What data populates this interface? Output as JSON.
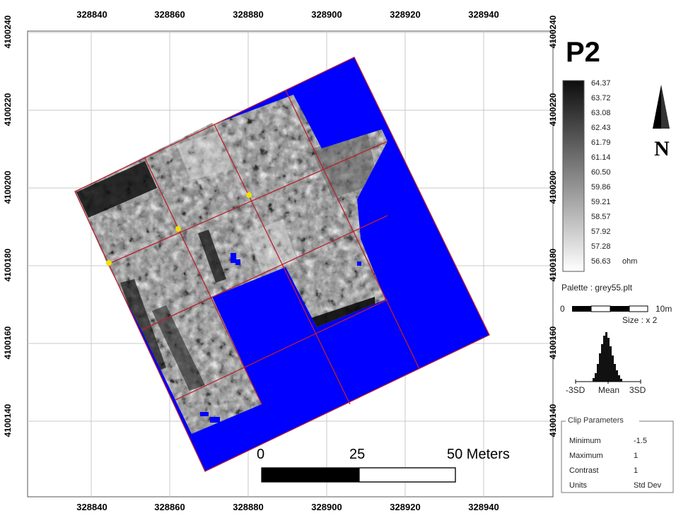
{
  "title": "P2",
  "axes": {
    "x_ticks": [
      "328840",
      "328860",
      "328880",
      "328900",
      "328920",
      "328940"
    ],
    "y_ticks": [
      "4100240",
      "4100220",
      "4100200",
      "4100180",
      "4100160",
      "4100140"
    ]
  },
  "north": {
    "letter": "N"
  },
  "legend": {
    "values": [
      "64.37",
      "63.72",
      "63.08",
      "62.43",
      "61.79",
      "61.14",
      "60.50",
      "59.86",
      "59.21",
      "58.57",
      "57.92",
      "57.28",
      "56.63"
    ],
    "unit": "ohm",
    "palette": "Palette : grey55.plt"
  },
  "size_scale": {
    "zero": "0",
    "end": "10m",
    "size": "Size : x 2"
  },
  "histogram": {
    "labels": [
      "-3SD",
      "Mean",
      "3SD"
    ]
  },
  "clip": {
    "title": "Clip Parameters",
    "rows": [
      {
        "label": "Minimum",
        "value": "-1.5"
      },
      {
        "label": "Maximum",
        "value": "1"
      },
      {
        "label": "Contrast",
        "value": "1"
      },
      {
        "label": "Units",
        "value": "Std Dev"
      }
    ]
  },
  "scalebar": {
    "labels": [
      "0",
      "25",
      "50 Meters"
    ]
  },
  "colors": {
    "fill": "#0000ff",
    "grid_line": "#b00020",
    "marker": "#f0e000"
  }
}
